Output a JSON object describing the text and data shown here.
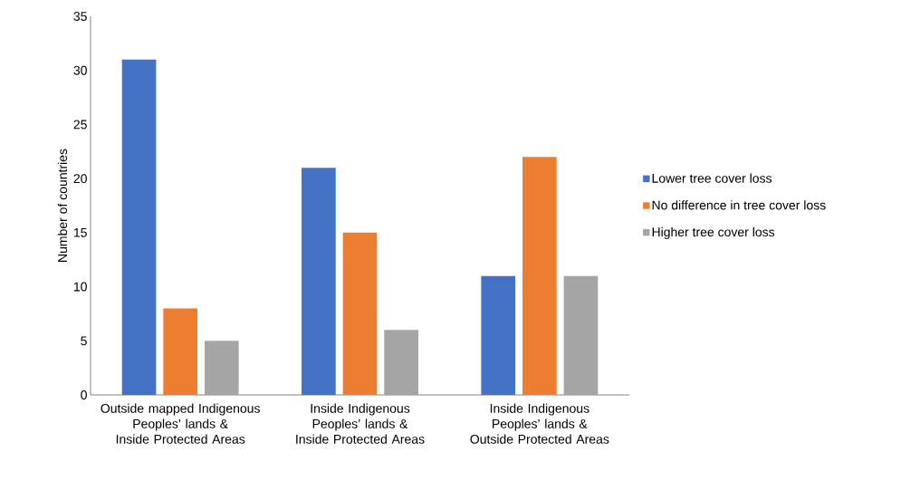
{
  "chart_data": {
    "type": "bar",
    "ylabel": "Number of countries",
    "categories": [
      "Outside mapped Indigenous Peoples’ lands & Inside Protected Areas",
      "Inside Indigenous Peoples’ lands & Inside Protected Areas",
      "Inside Indigenous Peoples’ lands & Outside Protected Areas"
    ],
    "series": [
      {
        "name": "Lower tree cover loss",
        "color": "#4472c4",
        "values": [
          31,
          21,
          11
        ]
      },
      {
        "name": "No difference in tree cover loss",
        "color": "#ed7d31",
        "values": [
          8,
          15,
          22
        ]
      },
      {
        "name": "Higher tree cover loss",
        "color": "#a5a5a5",
        "values": [
          5,
          6,
          11
        ]
      }
    ],
    "ylim": [
      0,
      35
    ],
    "yticks": [
      0,
      5,
      10,
      15,
      20,
      25,
      30,
      35
    ],
    "grid": false,
    "legend": "right"
  }
}
